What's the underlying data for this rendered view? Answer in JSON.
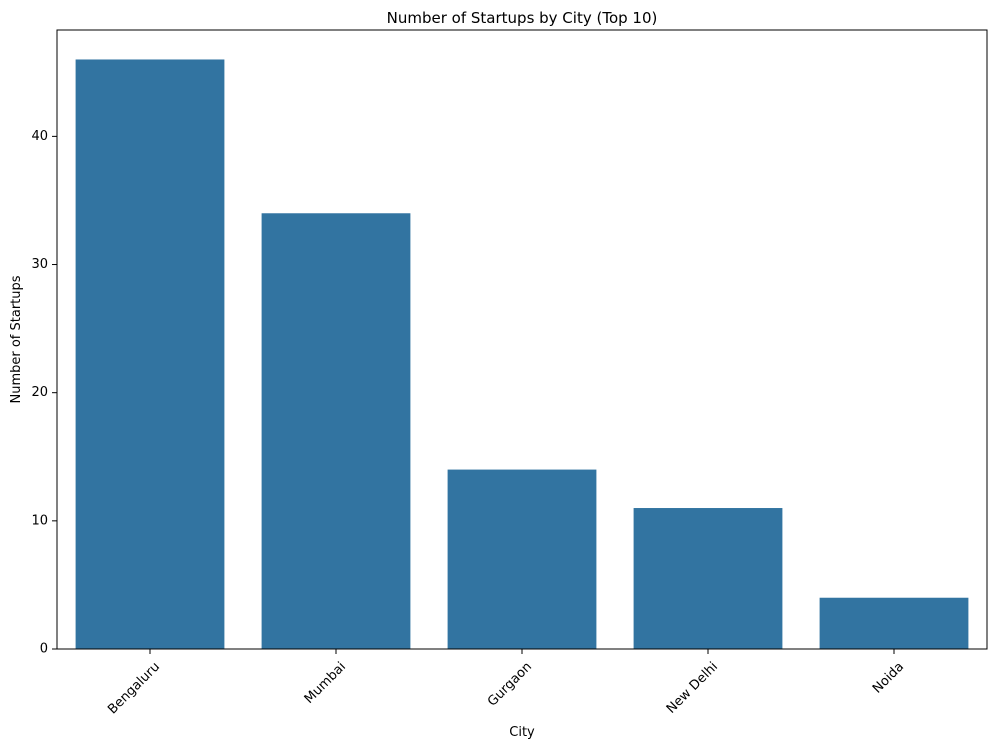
{
  "chart_data": {
    "type": "bar",
    "title": "Number of Startups by City (Top 10)",
    "xlabel": "City",
    "ylabel": "Number of Startups",
    "categories": [
      "Bengaluru",
      "Mumbai",
      "Gurgaon",
      "New Delhi",
      "Noida"
    ],
    "values": [
      46,
      34,
      14,
      11,
      4
    ],
    "ylim": [
      0,
      48.3
    ],
    "yticks": [
      0,
      10,
      20,
      30,
      40
    ],
    "x_tick_rotation": 45,
    "grid": false,
    "legend": "none",
    "bar_color": "#3274a1"
  }
}
